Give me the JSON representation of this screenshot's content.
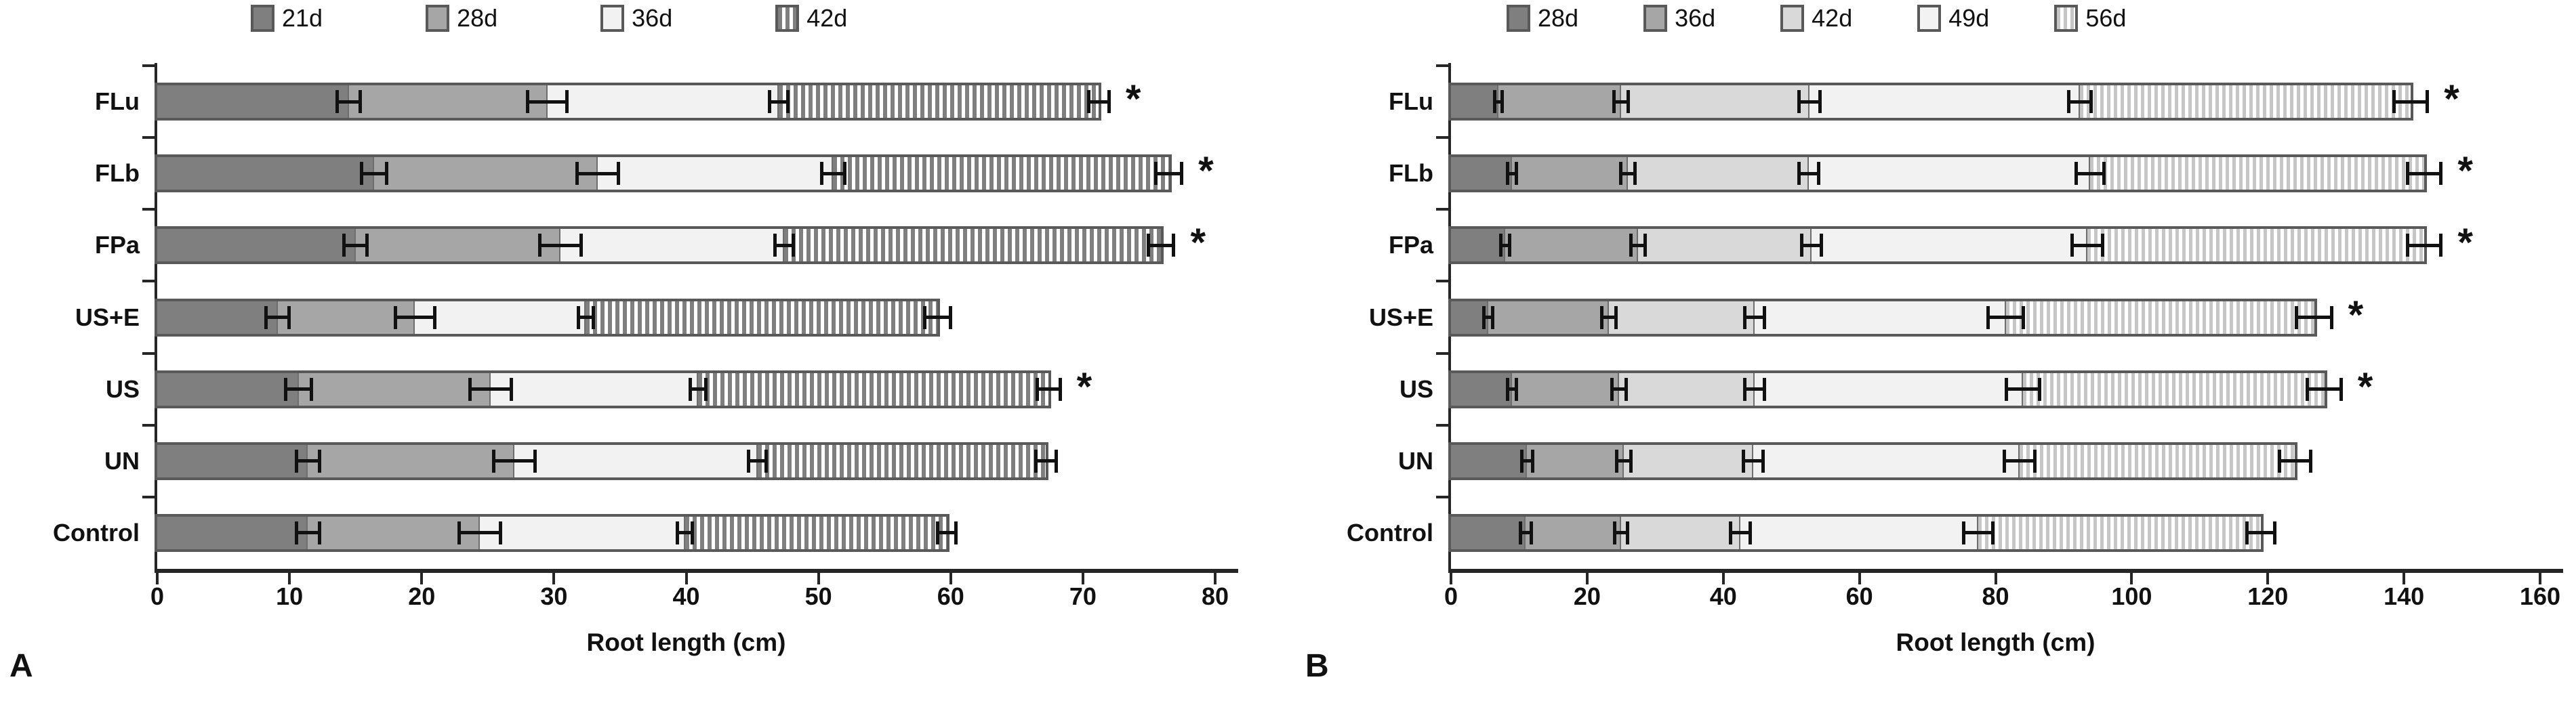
{
  "figure_colors": {
    "axis": "#262626",
    "bar_outline": "#595959",
    "error_bar": "#111111",
    "text": "#111111",
    "background": "#ffffff"
  },
  "chart_data": [
    {
      "panel_label": "A",
      "type": "bar",
      "orientation": "horizontal",
      "stacked": true,
      "title": "",
      "xlabel": "Root length (cm)",
      "ylabel": "",
      "xlim": [
        0,
        80
      ],
      "xticks": [
        0,
        10,
        20,
        30,
        40,
        50,
        60,
        70,
        80
      ],
      "legend_position": "top",
      "grid": false,
      "categories": [
        "FLu",
        "FLb",
        "FPa",
        "US+E",
        "US",
        "UN",
        "Control"
      ],
      "series": [
        {
          "name": "21d",
          "style": {
            "pattern": "solid",
            "fill": "#7f7f7f"
          },
          "values": [
            14.5,
            16.4,
            15.0,
            9.1,
            10.7,
            11.4,
            11.4
          ],
          "errors": [
            1.0,
            1.1,
            1.0,
            1.0,
            1.1,
            1.0,
            1.0
          ]
        },
        {
          "name": "28d",
          "style": {
            "pattern": "solid",
            "fill": "#a6a6a6"
          },
          "values": [
            15.0,
            16.9,
            15.5,
            10.4,
            14.5,
            15.6,
            13.0
          ],
          "errors": [
            1.6,
            1.7,
            1.7,
            1.6,
            1.7,
            1.7,
            1.7
          ]
        },
        {
          "name": "36d",
          "style": {
            "pattern": "solid",
            "fill": "#f2f2f2"
          },
          "values": [
            17.5,
            17.8,
            16.9,
            12.9,
            15.7,
            18.4,
            15.5
          ],
          "errors": [
            0.8,
            1.0,
            0.8,
            0.7,
            0.7,
            0.8,
            0.7
          ]
        },
        {
          "name": "42d",
          "style": {
            "pattern": "stripes",
            "stripe_color": "#7f7f7f",
            "background": "#ffffff",
            "stripe_width": 6,
            "period": 11
          },
          "values": [
            24.2,
            25.4,
            28.5,
            26.6,
            26.5,
            21.8,
            19.8
          ],
          "errors": [
            0.9,
            1.1,
            1.1,
            1.1,
            1.0,
            0.9,
            0.8
          ]
        }
      ],
      "totals": [
        71.2,
        76.5,
        75.9,
        59.0,
        67.4,
        67.2,
        59.7
      ],
      "significance": {
        "marker": "*",
        "flags": [
          true,
          true,
          true,
          false,
          true,
          false,
          false
        ]
      }
    },
    {
      "panel_label": "B",
      "type": "bar",
      "orientation": "horizontal",
      "stacked": true,
      "title": "",
      "xlabel": "Root length (cm)",
      "ylabel": "",
      "xlim": [
        0,
        160
      ],
      "xticks": [
        0,
        20,
        40,
        60,
        80,
        100,
        120,
        140,
        160
      ],
      "legend_position": "top",
      "grid": false,
      "categories": [
        "FLu",
        "FLb",
        "FPa",
        "US+E",
        "US",
        "UN",
        "Control"
      ],
      "series": [
        {
          "name": "28d",
          "style": {
            "pattern": "solid",
            "fill": "#7f7f7f"
          },
          "values": [
            7.0,
            9.0,
            8.0,
            5.5,
            9.0,
            11.2,
            11.0
          ],
          "errors": [
            0.8,
            0.9,
            0.9,
            0.9,
            0.9,
            1.0,
            1.0
          ]
        },
        {
          "name": "36d",
          "style": {
            "pattern": "solid",
            "fill": "#a6a6a6"
          },
          "values": [
            18.0,
            17.0,
            19.5,
            17.7,
            15.7,
            14.2,
            14.0
          ],
          "errors": [
            1.3,
            1.3,
            1.3,
            1.3,
            1.3,
            1.3,
            1.2
          ]
        },
        {
          "name": "42d",
          "style": {
            "pattern": "solid",
            "fill": "#d9d9d9"
          },
          "values": [
            27.7,
            26.6,
            25.5,
            21.4,
            19.9,
            19.0,
            17.5
          ],
          "errors": [
            1.8,
            1.7,
            1.7,
            1.7,
            1.7,
            1.7,
            1.7
          ]
        },
        {
          "name": "49d",
          "style": {
            "pattern": "solid",
            "fill": "#f2f2f2"
          },
          "values": [
            39.7,
            41.3,
            40.5,
            36.9,
            39.4,
            39.1,
            35.0
          ],
          "errors": [
            1.9,
            2.3,
            2.5,
            2.8,
            2.7,
            2.5,
            2.4
          ]
        },
        {
          "name": "56d",
          "style": {
            "pattern": "stripes",
            "stripe_color": "#c6c6c6",
            "background": "#ffffff",
            "stripe_width": 5,
            "period": 10
          },
          "values": [
            48.6,
            49.1,
            49.5,
            45.3,
            44.3,
            40.5,
            41.5
          ],
          "errors": [
            2.7,
            2.7,
            2.7,
            2.8,
            2.7,
            2.5,
            2.3
          ]
        }
      ],
      "totals": [
        141.0,
        143.0,
        143.0,
        126.8,
        128.3,
        124.0,
        119.0
      ],
      "significance": {
        "marker": "*",
        "flags": [
          true,
          true,
          true,
          true,
          true,
          false,
          false
        ]
      }
    }
  ]
}
